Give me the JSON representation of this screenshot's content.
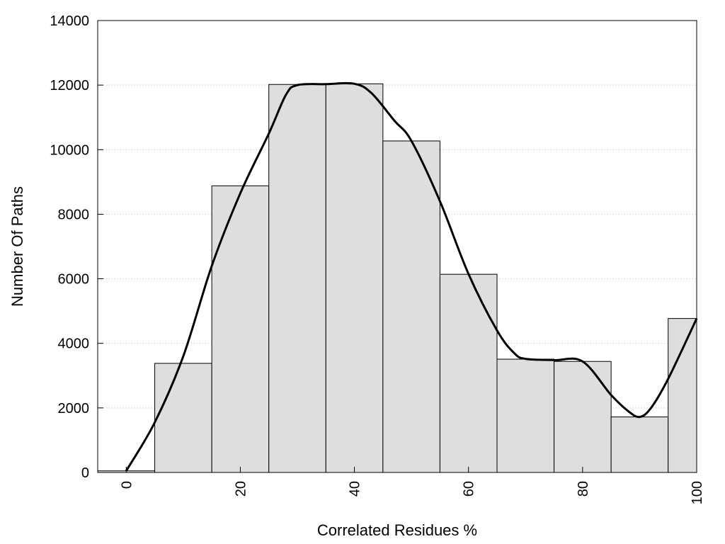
{
  "chart_data": {
    "type": "bar",
    "title": "",
    "xlabel": "Correlated Residues %",
    "ylabel": "Number Of Paths",
    "xlim": [
      -5,
      100
    ],
    "ylim": [
      0,
      14000
    ],
    "x_ticks": [
      0,
      20,
      40,
      60,
      80,
      100
    ],
    "y_ticks": [
      0,
      2000,
      4000,
      6000,
      8000,
      10000,
      12000,
      14000
    ],
    "grid": "horizontal dotted",
    "legend": "none",
    "bar_width": 10,
    "x": [
      0,
      10,
      20,
      30,
      40,
      50,
      60,
      70,
      80,
      90,
      100
    ],
    "values": [
      50,
      3380,
      8880,
      12020,
      12040,
      10270,
      6140,
      3510,
      3440,
      1720,
      4770
    ],
    "curve": {
      "style": "smooth line",
      "x": [
        0,
        5,
        10,
        15,
        20,
        25,
        28,
        30,
        35,
        40,
        43,
        47,
        50,
        55,
        60,
        65,
        68,
        70,
        75,
        80,
        85,
        88,
        90,
        92,
        95,
        100
      ],
      "y": [
        50,
        1550,
        3600,
        6400,
        8650,
        10500,
        11700,
        12000,
        12030,
        12040,
        11750,
        10900,
        10270,
        8400,
        6150,
        4400,
        3700,
        3520,
        3480,
        3440,
        2400,
        1900,
        1720,
        2000,
        2900,
        4770
      ]
    },
    "colors": {
      "bar_fill": "#dedede",
      "bar_stroke": "#000000",
      "line": "#000000"
    }
  }
}
